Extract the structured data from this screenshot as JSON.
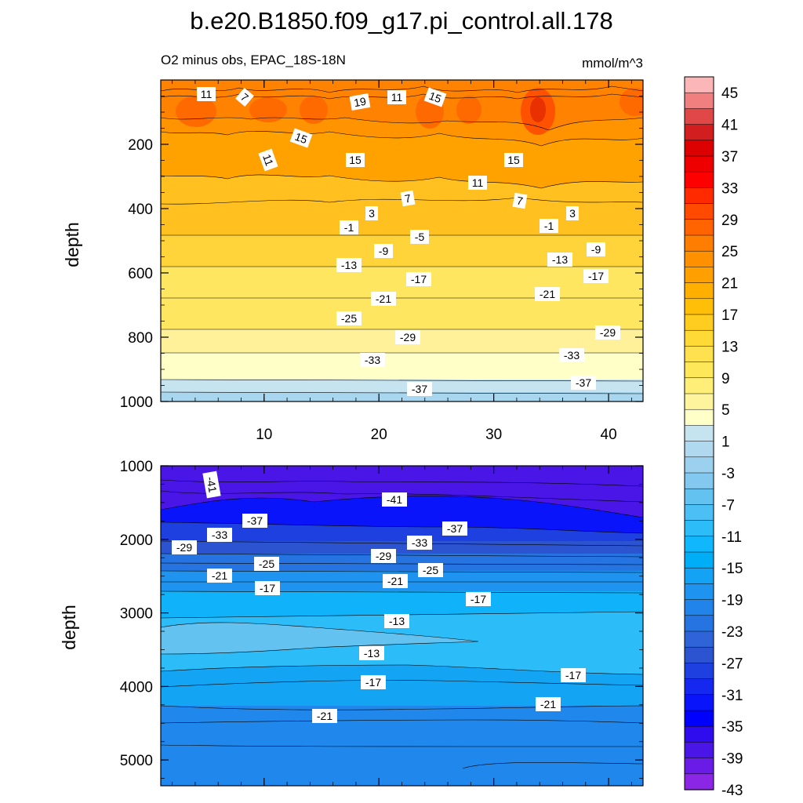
{
  "chart_data": {
    "type": "contour",
    "title": "b.e20.B1850.f09_g17.pi_control.all.178",
    "subtitle_left": "O2 minus obs, EPAC_18S-18N",
    "subtitle_right": "mmol/m^3",
    "ylabel": "depth",
    "x_ticks": [
      "10",
      "20",
      "30",
      "40"
    ],
    "xlim": [
      1,
      43
    ],
    "colorbar_labels": [
      "45",
      "41",
      "37",
      "33",
      "29",
      "25",
      "21",
      "17",
      "13",
      "9",
      "5",
      "1",
      "-3",
      "-7",
      "-11",
      "-15",
      "-19",
      "-23",
      "-27",
      "-31",
      "-35",
      "-39",
      "-43"
    ],
    "colorbar_colors": [
      "#fbb6b8",
      "#f08080",
      "#e04848",
      "#d21e1e",
      "#dc0000",
      "#ee0000",
      "#ff0000",
      "#ff2a00",
      "#ff4a00",
      "#ff6400",
      "#ff7d00",
      "#ff9000",
      "#ffa000",
      "#ffaf00",
      "#ffbe08",
      "#ffcc20",
      "#ffd935",
      "#ffe150",
      "#ffe75a",
      "#ffee78",
      "#fff49e",
      "#ffffc8",
      "#c6e4f0",
      "#b0d8ee",
      "#9bd0ee",
      "#83c8ee",
      "#63c2f0",
      "#4cc0f4",
      "#2cbcf8",
      "#10b7fc",
      "#00aef8",
      "#14a2f4",
      "#1e94f0",
      "#2084ea",
      "#2674e2",
      "#2e64d8",
      "#2c54d0",
      "#1e40e0",
      "#1428f0",
      "#0a14fb",
      "#0000ff",
      "#2e0cee",
      "#4a16e8",
      "#6a1ce6",
      "#8a26e4"
    ],
    "panels": [
      {
        "name": "upper",
        "y_ticks": [
          "200",
          "400",
          "600",
          "800",
          "1000"
        ],
        "ylim": [
          0,
          1000
        ],
        "contour_labels": [
          "11",
          "7",
          "19",
          "11",
          "15",
          "15",
          "11",
          "15",
          "15",
          "11",
          "7",
          "7",
          "3",
          "3",
          "-1",
          "-1",
          "-5",
          "-9",
          "-9",
          "-13",
          "-13",
          "-17",
          "-17",
          "-21",
          "-21",
          "-25",
          "-29",
          "-29",
          "-33",
          "-33",
          "-37",
          "-37"
        ]
      },
      {
        "name": "lower",
        "y_ticks": [
          "1000",
          "2000",
          "3000",
          "4000",
          "5000"
        ],
        "ylim": [
          1000,
          5350
        ],
        "contour_labels": [
          "-41",
          "-41",
          "-37",
          "-37",
          "-33",
          "-33",
          "-29",
          "-29",
          "-25",
          "-25",
          "-21",
          "-21",
          "-17",
          "-17",
          "-13",
          "-13",
          "-17",
          "-17",
          "-21",
          "-21"
        ]
      }
    ]
  }
}
